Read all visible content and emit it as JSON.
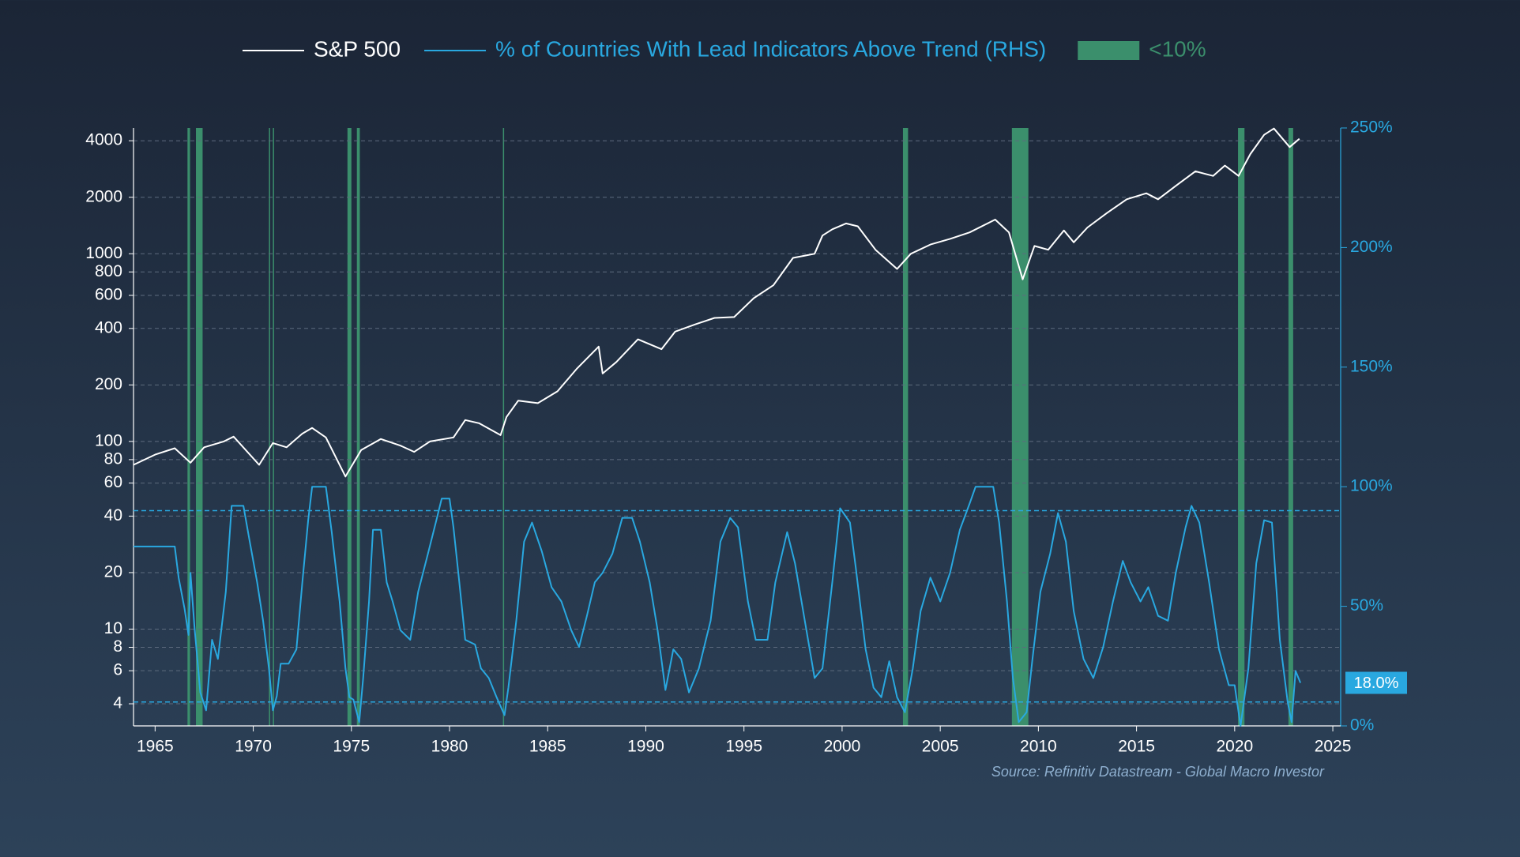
{
  "chart_data": {
    "type": "line",
    "source": "Source: Refinitiv Datastream - Global Macro Investor",
    "xlim": [
      1963.9,
      2025.4
    ],
    "xticks": [
      1965,
      1970,
      1975,
      1980,
      1985,
      1990,
      1995,
      2000,
      2005,
      2010,
      2015,
      2020,
      2025
    ],
    "ylim": [
      3.05,
      4680
    ],
    "ylog": true,
    "yticks": [
      4,
      6,
      8,
      10,
      20,
      40,
      60,
      80,
      100,
      200,
      400,
      600,
      800,
      1000,
      2000,
      4000
    ],
    "y2lim": [
      0,
      250
    ],
    "y2ticks": [
      {
        "value": 0,
        "label": "0%"
      },
      {
        "value": 50,
        "label": "50%"
      },
      {
        "value": 100,
        "label": "100%"
      },
      {
        "value": 150,
        "label": "150%"
      },
      {
        "value": 200,
        "label": "200%"
      },
      {
        "value": 250,
        "label": "250%"
      }
    ],
    "grid": true,
    "legend": "top",
    "series": [
      {
        "name": "S&P 500",
        "color": "#ffffff",
        "x": [
          1963.9,
          1965.0,
          1966.0,
          1966.8,
          1967.5,
          1968.5,
          1969.0,
          1970.3,
          1971.0,
          1971.7,
          1972.5,
          1973.0,
          1973.7,
          1974.7,
          1975.5,
          1976.5,
          1977.5,
          1978.2,
          1979.0,
          1980.2,
          1980.8,
          1981.5,
          1982.6,
          1982.9,
          1983.5,
          1984.5,
          1985.5,
          1986.5,
          1987.6,
          1987.8,
          1988.5,
          1989.6,
          1990.8,
          1991.5,
          1992.5,
          1993.5,
          1994.5,
          1995.5,
          1996.5,
          1997.5,
          1998.6,
          1999.0,
          1999.5,
          2000.2,
          2000.8,
          2001.7,
          2002.8,
          2003.5,
          2004.5,
          2005.5,
          2006.5,
          2007.8,
          2008.5,
          2009.2,
          2009.8,
          2010.5,
          2011.3,
          2011.8,
          2012.5,
          2013.5,
          2014.5,
          2015.5,
          2016.1,
          2017.0,
          2018.0,
          2018.9,
          2019.5,
          2020.2,
          2020.8,
          2021.5,
          2022.0,
          2022.8,
          2023.3
        ],
        "values": [
          75,
          85,
          92,
          77,
          93,
          100,
          106,
          75,
          98,
          93,
          110,
          118,
          105,
          65,
          90,
          103,
          95,
          88,
          100,
          105,
          130,
          125,
          108,
          135,
          165,
          160,
          185,
          245,
          320,
          230,
          265,
          350,
          310,
          385,
          420,
          455,
          460,
          580,
          680,
          950,
          1000,
          1250,
          1350,
          1450,
          1400,
          1050,
          830,
          1000,
          1120,
          1200,
          1300,
          1520,
          1300,
          730,
          1100,
          1050,
          1330,
          1150,
          1380,
          1650,
          1950,
          2100,
          1950,
          2300,
          2750,
          2600,
          2950,
          2600,
          3400,
          4300,
          4650,
          3700,
          4100
        ]
      },
      {
        "name": "% of Countries With Lead Indicators Above Trend (RHS)",
        "color": "#29a8e0",
        "axis": "y2",
        "x": [
          1963.9,
          1966.0,
          1966.2,
          1966.5,
          1966.7,
          1966.8,
          1967.0,
          1967.3,
          1967.6,
          1967.9,
          1968.2,
          1968.6,
          1968.9,
          1969.5,
          1969.8,
          1970.2,
          1970.5,
          1970.8,
          1971.0,
          1971.2,
          1971.4,
          1971.8,
          1972.2,
          1972.5,
          1972.8,
          1973.0,
          1973.7,
          1974.0,
          1974.4,
          1974.7,
          1974.9,
          1975.1,
          1975.4,
          1975.6,
          1975.9,
          1976.1,
          1976.5,
          1976.8,
          1977.1,
          1977.5,
          1978.0,
          1978.4,
          1978.9,
          1979.3,
          1979.6,
          1980.0,
          1980.2,
          1980.5,
          1980.8,
          1981.3,
          1981.6,
          1982.0,
          1982.4,
          1982.8,
          1983.0,
          1983.4,
          1983.8,
          1984.2,
          1984.7,
          1985.2,
          1985.7,
          1986.2,
          1986.6,
          1987.0,
          1987.4,
          1987.8,
          1988.3,
          1988.8,
          1989.3,
          1989.7,
          1990.2,
          1990.6,
          1991.0,
          1991.4,
          1991.8,
          1992.2,
          1992.7,
          1993.3,
          1993.8,
          1994.3,
          1994.7,
          1995.2,
          1995.6,
          1996.2,
          1996.6,
          1997.2,
          1997.6,
          1998.1,
          1998.6,
          1999.0,
          1999.5,
          1999.9,
          2000.4,
          2000.7,
          2001.2,
          2001.6,
          2002.0,
          2002.4,
          2002.8,
          2003.2,
          2003.6,
          2004.0,
          2004.5,
          2005.0,
          2005.5,
          2006.0,
          2006.5,
          2006.8,
          2007.7,
          2008.0,
          2008.4,
          2008.7,
          2009.0,
          2009.4,
          2009.7,
          2010.1,
          2010.6,
          2011.0,
          2011.4,
          2011.8,
          2012.3,
          2012.8,
          2013.3,
          2013.8,
          2014.3,
          2014.7,
          2015.2,
          2015.6,
          2016.1,
          2016.6,
          2017.0,
          2017.5,
          2017.8,
          2018.2,
          2018.7,
          2019.2,
          2019.7,
          2020.0,
          2020.3,
          2020.7,
          2021.1,
          2021.5,
          2021.9,
          2022.3,
          2022.7,
          2022.9,
          2023.1,
          2023.35
        ],
        "values": [
          75,
          75,
          62,
          49,
          38,
          64,
          42,
          14,
          6.5,
          36,
          28,
          56,
          92,
          92,
          78,
          60,
          44,
          24,
          6.5,
          12.5,
          26,
          26,
          32,
          60,
          86,
          100,
          100,
          81,
          52,
          24,
          12,
          11,
          1.6,
          20,
          52,
          82,
          82,
          60,
          52,
          40,
          36,
          56,
          72,
          85,
          95,
          95,
          83,
          60,
          36,
          34,
          24,
          20,
          12,
          4.5,
          16,
          44,
          77,
          85,
          73,
          58,
          52,
          40,
          33,
          46,
          60,
          64,
          72,
          87,
          87,
          77,
          60,
          40,
          15,
          32,
          28,
          14,
          24,
          44,
          77,
          87,
          83,
          52,
          36,
          36,
          60,
          81,
          68,
          44,
          20,
          24,
          60,
          91,
          85,
          66,
          32,
          16,
          12,
          27,
          12,
          5.7,
          24,
          48,
          62,
          52,
          64,
          82,
          93,
          100,
          100,
          85,
          52,
          20,
          1.6,
          5.7,
          28,
          56,
          72,
          89,
          77,
          48,
          28,
          20,
          33,
          52,
          69,
          60,
          52,
          58,
          46,
          44,
          64,
          83,
          92,
          85,
          60,
          32,
          17,
          17,
          0,
          24,
          68,
          86,
          85,
          36,
          10,
          1.6,
          23,
          18.0
        ]
      }
    ],
    "highlight": {
      "label": "<10%",
      "color": "#3b8f6c",
      "spans": [
        [
          1966.65,
          1966.78
        ],
        [
          1967.08,
          1967.42
        ],
        [
          1970.8,
          1970.86
        ],
        [
          1971.0,
          1971.06
        ],
        [
          1974.8,
          1975.0
        ],
        [
          1975.28,
          1975.43
        ],
        [
          1982.72,
          1982.78
        ],
        [
          2003.1,
          2003.36
        ],
        [
          2008.65,
          2009.49
        ],
        [
          2020.17,
          2020.5
        ],
        [
          2022.74,
          2022.98
        ]
      ]
    },
    "reference_lines": [
      {
        "axis": "y2",
        "value": 90
      },
      {
        "axis": "y2",
        "value": 10
      }
    ],
    "annotations": [
      {
        "text": "18.0%",
        "y2": 18.0
      }
    ]
  }
}
